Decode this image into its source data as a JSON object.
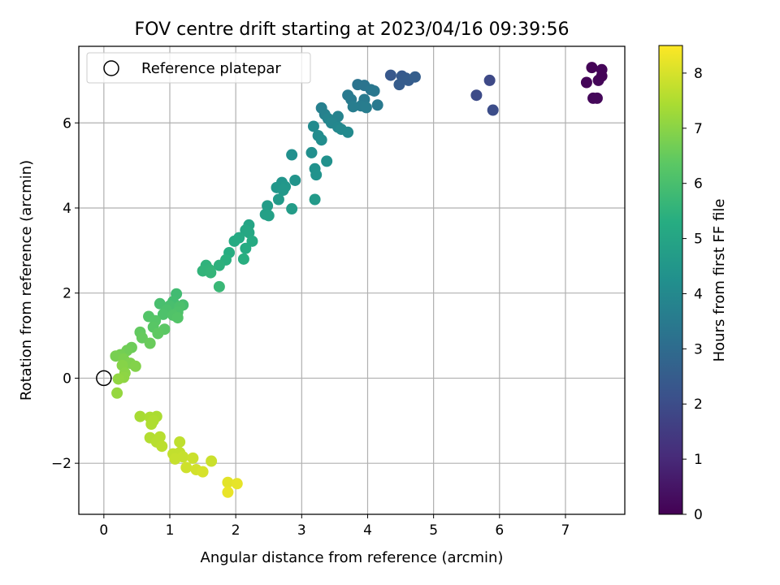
{
  "chart_data": {
    "type": "scatter",
    "title": "FOV centre drift starting at 2023/04/16 09:39:56",
    "xlabel": "Angular distance from reference (arcmin)",
    "ylabel": "Rotation from reference (arcmin)",
    "colorbar_label": "Hours from first FF file",
    "colormap": "viridis",
    "xlim": [
      -0.38,
      7.9
    ],
    "ylim": [
      -3.2,
      7.8
    ],
    "clim": [
      0,
      8.5
    ],
    "xticks": [
      "0",
      "1",
      "2",
      "3",
      "4",
      "5",
      "6",
      "7"
    ],
    "yticks": [
      "−2",
      "0",
      "2",
      "4",
      "6"
    ],
    "cticks": [
      "0",
      "1",
      "2",
      "3",
      "4",
      "5",
      "6",
      "7",
      "8"
    ],
    "grid": true,
    "legend": {
      "position": "top-left",
      "label": "Reference platepar"
    },
    "reference_point": [
      0,
      0
    ],
    "points": [
      [
        7.4,
        7.3,
        0.05
      ],
      [
        7.55,
        7.25,
        0.1
      ],
      [
        7.32,
        6.95,
        0.1
      ],
      [
        7.5,
        7.0,
        0.12
      ],
      [
        7.55,
        7.1,
        0.08
      ],
      [
        7.42,
        6.58,
        0.15
      ],
      [
        7.48,
        6.58,
        0.18
      ],
      [
        5.85,
        7.0,
        1.9
      ],
      [
        5.65,
        6.65,
        1.95
      ],
      [
        5.9,
        6.3,
        2.0
      ],
      [
        4.35,
        7.12,
        2.35
      ],
      [
        4.52,
        7.1,
        2.4
      ],
      [
        4.58,
        7.05,
        2.45
      ],
      [
        4.62,
        7.0,
        2.5
      ],
      [
        4.48,
        6.9,
        2.5
      ],
      [
        4.72,
        7.08,
        2.55
      ],
      [
        3.85,
        6.9,
        3.25
      ],
      [
        3.95,
        6.88,
        3.3
      ],
      [
        4.05,
        6.78,
        3.35
      ],
      [
        4.1,
        6.75,
        3.4
      ],
      [
        3.7,
        6.65,
        3.45
      ],
      [
        3.75,
        6.55,
        3.5
      ],
      [
        3.95,
        6.55,
        3.5
      ],
      [
        4.15,
        6.42,
        3.45
      ],
      [
        3.9,
        6.4,
        3.55
      ],
      [
        3.78,
        6.38,
        3.6
      ],
      [
        3.98,
        6.36,
        3.6
      ],
      [
        3.3,
        6.35,
        3.7
      ],
      [
        3.35,
        6.2,
        3.75
      ],
      [
        3.55,
        6.15,
        3.8
      ],
      [
        3.4,
        6.1,
        3.85
      ],
      [
        3.45,
        6.0,
        3.9
      ],
      [
        3.55,
        5.9,
        3.95
      ],
      [
        3.6,
        5.85,
        4.0
      ],
      [
        3.7,
        5.78,
        4.05
      ],
      [
        3.18,
        5.92,
        4.05
      ],
      [
        3.25,
        5.7,
        4.1
      ],
      [
        3.3,
        5.6,
        4.15
      ],
      [
        3.15,
        5.3,
        4.2
      ],
      [
        2.85,
        5.25,
        4.25
      ],
      [
        3.38,
        5.1,
        4.3
      ],
      [
        3.2,
        4.92,
        4.3
      ],
      [
        3.22,
        4.78,
        4.35
      ],
      [
        2.9,
        4.65,
        4.4
      ],
      [
        2.7,
        4.6,
        4.45
      ],
      [
        2.75,
        4.5,
        4.5
      ],
      [
        2.62,
        4.48,
        4.5
      ],
      [
        2.72,
        4.42,
        4.55
      ],
      [
        2.65,
        4.2,
        4.6
      ],
      [
        3.2,
        4.2,
        4.6
      ],
      [
        2.48,
        4.05,
        4.7
      ],
      [
        2.85,
        3.98,
        4.7
      ],
      [
        2.45,
        3.85,
        4.8
      ],
      [
        2.5,
        3.82,
        4.85
      ],
      [
        2.2,
        3.6,
        5.0
      ],
      [
        2.15,
        3.48,
        5.05
      ],
      [
        2.2,
        3.42,
        5.1
      ],
      [
        2.05,
        3.3,
        5.15
      ],
      [
        1.98,
        3.22,
        5.2
      ],
      [
        2.25,
        3.22,
        5.2
      ],
      [
        2.15,
        3.05,
        5.25
      ],
      [
        1.9,
        2.95,
        5.3
      ],
      [
        2.12,
        2.8,
        5.35
      ],
      [
        1.85,
        2.78,
        5.4
      ],
      [
        1.75,
        2.65,
        5.45
      ],
      [
        1.55,
        2.65,
        5.5
      ],
      [
        1.6,
        2.55,
        5.55
      ],
      [
        1.5,
        2.52,
        5.55
      ],
      [
        1.62,
        2.48,
        5.6
      ],
      [
        1.75,
        2.15,
        5.7
      ],
      [
        1.1,
        1.98,
        5.85
      ],
      [
        1.05,
        1.8,
        5.9
      ],
      [
        1.2,
        1.72,
        5.95
      ],
      [
        0.85,
        1.75,
        6.0
      ],
      [
        1.0,
        1.7,
        6.0
      ],
      [
        1.15,
        1.68,
        6.05
      ],
      [
        0.95,
        1.6,
        6.05
      ],
      [
        1.12,
        1.55,
        6.1
      ],
      [
        0.9,
        1.5,
        6.1
      ],
      [
        1.05,
        1.48,
        6.15
      ],
      [
        0.68,
        1.45,
        6.2
      ],
      [
        1.12,
        1.42,
        6.2
      ],
      [
        0.78,
        1.35,
        6.25
      ],
      [
        0.75,
        1.2,
        6.3
      ],
      [
        0.92,
        1.15,
        6.35
      ],
      [
        0.82,
        1.05,
        6.4
      ],
      [
        0.55,
        1.08,
        6.45
      ],
      [
        0.58,
        0.95,
        6.5
      ],
      [
        0.7,
        0.82,
        6.55
      ],
      [
        0.42,
        0.72,
        6.6
      ],
      [
        0.35,
        0.65,
        6.65
      ],
      [
        0.25,
        0.55,
        6.7
      ],
      [
        0.18,
        0.52,
        6.75
      ],
      [
        0.3,
        0.45,
        6.8
      ],
      [
        0.4,
        0.35,
        6.85
      ],
      [
        0.48,
        0.28,
        6.9
      ],
      [
        0.28,
        0.3,
        6.95
      ],
      [
        0.32,
        0.12,
        7.0
      ],
      [
        0.3,
        0.02,
        7.05
      ],
      [
        0.22,
        -0.02,
        7.1
      ],
      [
        0.2,
        -0.35,
        7.15
      ],
      [
        0.55,
        -0.9,
        7.4
      ],
      [
        0.7,
        -0.92,
        7.45
      ],
      [
        0.8,
        -0.9,
        7.45
      ],
      [
        0.75,
        -1.0,
        7.5
      ],
      [
        0.72,
        -1.08,
        7.5
      ],
      [
        0.7,
        -1.4,
        7.55
      ],
      [
        0.85,
        -1.38,
        7.6
      ],
      [
        0.8,
        -1.5,
        7.6
      ],
      [
        0.88,
        -1.6,
        7.65
      ],
      [
        1.15,
        -1.5,
        7.7
      ],
      [
        1.05,
        -1.78,
        7.75
      ],
      [
        1.15,
        -1.75,
        7.75
      ],
      [
        1.2,
        -1.85,
        7.8
      ],
      [
        1.08,
        -1.9,
        7.8
      ],
      [
        1.35,
        -1.88,
        7.85
      ],
      [
        1.25,
        -2.1,
        7.9
      ],
      [
        1.4,
        -2.15,
        7.95
      ],
      [
        1.5,
        -2.2,
        8.0
      ],
      [
        1.63,
        -1.95,
        7.85
      ],
      [
        1.88,
        -2.45,
        8.15
      ],
      [
        2.02,
        -2.48,
        8.2
      ],
      [
        1.88,
        -2.68,
        8.25
      ]
    ]
  }
}
